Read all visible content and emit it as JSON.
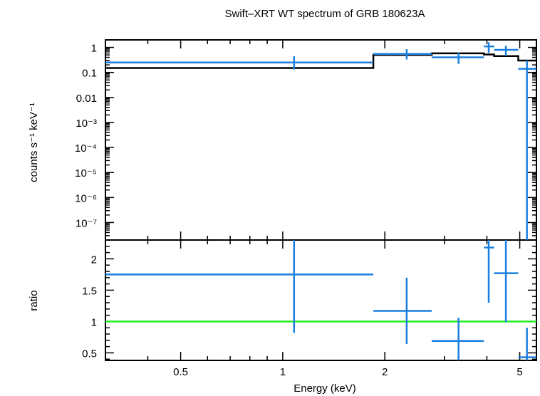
{
  "chart_data": {
    "title": "Swift–XRT WT spectrum of GRB 180623A",
    "xlabel": "Energy (keV)",
    "xscale": "log",
    "xlim": [
      0.3,
      5.6
    ],
    "x_ticks": [
      {
        "value": 0.5,
        "label": "0.5"
      },
      {
        "value": 1,
        "label": "1"
      },
      {
        "value": 2,
        "label": "2"
      },
      {
        "value": 5,
        "label": "5"
      }
    ],
    "panels": [
      {
        "name": "spectrum",
        "type": "scatter",
        "ylabel": "counts s⁻¹ keV⁻¹",
        "yscale": "log",
        "ylim": [
          2e-08,
          2
        ],
        "y_ticks": [
          {
            "value": 1,
            "label": "1"
          },
          {
            "value": 0.1,
            "label": "0.1"
          },
          {
            "value": 0.01,
            "label": "0.01"
          },
          {
            "value": 0.001,
            "label": "10⁻³"
          },
          {
            "value": 0.0001,
            "label": "10⁻⁴"
          },
          {
            "value": 1e-05,
            "label": "10⁻⁵"
          },
          {
            "value": 1e-06,
            "label": "10⁻⁶"
          },
          {
            "value": 1e-07,
            "label": "10⁻⁷"
          }
        ],
        "data_points": [
          {
            "x": 1.08,
            "xlo": 0.3,
            "xhi": 1.85,
            "y": 0.25,
            "ylo": 0.13,
            "yhi": 0.45
          },
          {
            "x": 2.32,
            "xlo": 1.85,
            "xhi": 2.75,
            "y": 0.55,
            "ylo": 0.33,
            "yhi": 0.85
          },
          {
            "x": 3.3,
            "xlo": 2.75,
            "xhi": 3.92,
            "y": 0.4,
            "ylo": 0.22,
            "yhi": 0.6
          },
          {
            "x": 4.05,
            "xlo": 3.92,
            "xhi": 4.2,
            "y": 1.1,
            "ylo": 0.6,
            "yhi": 1.6
          },
          {
            "x": 4.55,
            "xlo": 4.2,
            "xhi": 4.95,
            "y": 0.8,
            "ylo": 0.45,
            "yhi": 1.15
          },
          {
            "x": 5.25,
            "xlo": 4.95,
            "xhi": 5.6,
            "y": 0.14,
            "ylo": 2e-08,
            "yhi": 0.3
          }
        ],
        "model_step": [
          {
            "xlo": 0.3,
            "xhi": 1.85,
            "y": 0.15
          },
          {
            "xlo": 1.85,
            "xhi": 2.75,
            "y": 0.5
          },
          {
            "xlo": 2.75,
            "xhi": 3.92,
            "y": 0.58
          },
          {
            "xlo": 3.92,
            "xhi": 4.2,
            "y": 0.52
          },
          {
            "xlo": 4.2,
            "xhi": 4.95,
            "y": 0.45
          },
          {
            "xlo": 4.95,
            "xhi": 5.6,
            "y": 0.3
          }
        ],
        "data_color": "#1a7fe0",
        "model_color": "#000000"
      },
      {
        "name": "ratio",
        "type": "scatter",
        "ylabel": "ratio",
        "yscale": "linear",
        "ylim": [
          0.38,
          2.3
        ],
        "y_ticks": [
          {
            "value": 0.5,
            "label": "0.5"
          },
          {
            "value": 1,
            "label": "1"
          },
          {
            "value": 1.5,
            "label": "1.5"
          },
          {
            "value": 2,
            "label": "2"
          }
        ],
        "data_points": [
          {
            "x": 1.08,
            "xlo": 0.3,
            "xhi": 1.85,
            "y": 1.75,
            "ylo": 0.82,
            "yhi": 2.3
          },
          {
            "x": 2.32,
            "xlo": 1.85,
            "xhi": 2.75,
            "y": 1.17,
            "ylo": 0.64,
            "yhi": 1.7
          },
          {
            "x": 3.3,
            "xlo": 2.75,
            "xhi": 3.92,
            "y": 0.69,
            "ylo": 0.38,
            "yhi": 1.06
          },
          {
            "x": 4.05,
            "xlo": 3.92,
            "xhi": 4.2,
            "y": 2.18,
            "ylo": 1.3,
            "yhi": 2.3
          },
          {
            "x": 4.55,
            "xlo": 4.2,
            "xhi": 4.95,
            "y": 1.77,
            "ylo": 0.99,
            "yhi": 2.3
          },
          {
            "x": 5.25,
            "xlo": 4.95,
            "xhi": 5.6,
            "y": 0.43,
            "ylo": 0.38,
            "yhi": 0.9
          }
        ],
        "reference_line": {
          "y": 1,
          "color": "#22ee22"
        },
        "data_color": "#1a7fe0"
      }
    ]
  }
}
